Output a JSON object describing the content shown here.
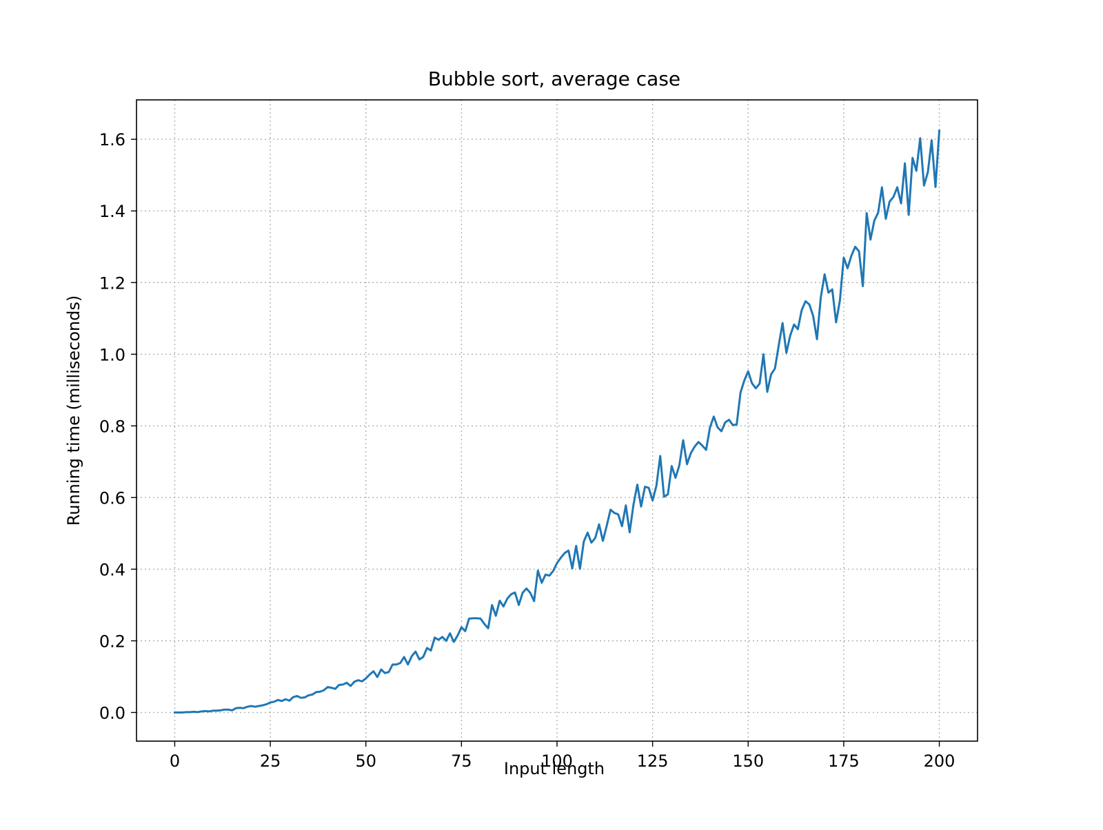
{
  "chart_data": {
    "type": "line",
    "title": "Bubble sort, average case",
    "xlabel": "Input length",
    "ylabel": "Running time (milliseconds)",
    "xlim": [
      -10,
      210
    ],
    "ylim": [
      -0.08,
      1.71
    ],
    "xticks": [
      0,
      25,
      50,
      75,
      100,
      125,
      150,
      175,
      200
    ],
    "xtick_labels": [
      "0",
      "25",
      "50",
      "75",
      "100",
      "125",
      "150",
      "175",
      "200"
    ],
    "yticks": [
      0.0,
      0.2,
      0.4,
      0.6,
      0.8,
      1.0,
      1.2,
      1.4,
      1.6
    ],
    "ytick_labels": [
      "0.0",
      "0.2",
      "0.4",
      "0.6",
      "0.8",
      "1.0",
      "1.2",
      "1.4",
      "1.6"
    ],
    "grid": true,
    "legend": "none",
    "series": [
      {
        "color": "#1f77b4",
        "x": [
          0,
          1,
          2,
          3,
          4,
          5,
          6,
          7,
          8,
          9,
          10,
          11,
          12,
          13,
          14,
          15,
          16,
          17,
          18,
          19,
          20,
          21,
          22,
          23,
          24,
          25,
          26,
          27,
          28,
          29,
          30,
          31,
          32,
          33,
          34,
          35,
          36,
          37,
          38,
          39,
          40,
          41,
          42,
          43,
          44,
          45,
          46,
          47,
          48,
          49,
          50,
          51,
          52,
          53,
          54,
          55,
          56,
          57,
          58,
          59,
          60,
          61,
          62,
          63,
          64,
          65,
          66,
          67,
          68,
          69,
          70,
          71,
          72,
          73,
          74,
          75,
          76,
          77,
          78,
          79,
          80,
          81,
          82,
          83,
          84,
          85,
          86,
          87,
          88,
          89,
          90,
          91,
          92,
          93,
          94,
          95,
          96,
          97,
          98,
          99,
          100,
          101,
          102,
          103,
          104,
          105,
          106,
          107,
          108,
          109,
          110,
          111,
          112,
          113,
          114,
          115,
          116,
          117,
          118,
          119,
          120,
          121,
          122,
          123,
          124,
          125,
          126,
          127,
          128,
          129,
          130,
          131,
          132,
          133,
          134,
          135,
          136,
          137,
          138,
          139,
          140,
          141,
          142,
          143,
          144,
          145,
          146,
          147,
          148,
          149,
          150,
          151,
          152,
          153,
          154,
          155,
          156,
          157,
          158,
          159,
          160,
          161,
          162,
          163,
          164,
          165,
          166,
          167,
          168,
          169,
          170,
          171,
          172,
          173,
          174,
          175,
          176,
          177,
          178,
          179,
          180,
          181,
          182,
          183,
          184,
          185,
          186,
          187,
          188,
          189,
          190,
          191,
          192,
          193,
          194,
          195,
          196,
          197,
          198,
          199,
          200
        ],
        "y": [
          0.0,
          0.0,
          0.0,
          0.001,
          0.001,
          0.002,
          0.001,
          0.003,
          0.004,
          0.003,
          0.005,
          0.005,
          0.006,
          0.008,
          0.008,
          0.006,
          0.012,
          0.013,
          0.012,
          0.016,
          0.018,
          0.016,
          0.018,
          0.02,
          0.023,
          0.028,
          0.03,
          0.035,
          0.032,
          0.037,
          0.033,
          0.043,
          0.046,
          0.041,
          0.042,
          0.048,
          0.05,
          0.057,
          0.058,
          0.062,
          0.071,
          0.069,
          0.066,
          0.077,
          0.078,
          0.083,
          0.074,
          0.086,
          0.09,
          0.087,
          0.095,
          0.106,
          0.115,
          0.099,
          0.12,
          0.11,
          0.113,
          0.134,
          0.134,
          0.138,
          0.155,
          0.134,
          0.157,
          0.17,
          0.148,
          0.155,
          0.18,
          0.173,
          0.209,
          0.203,
          0.211,
          0.2,
          0.221,
          0.197,
          0.215,
          0.238,
          0.227,
          0.262,
          0.263,
          0.263,
          0.262,
          0.247,
          0.235,
          0.3,
          0.27,
          0.312,
          0.296,
          0.318,
          0.33,
          0.335,
          0.3,
          0.334,
          0.346,
          0.334,
          0.311,
          0.396,
          0.362,
          0.385,
          0.382,
          0.395,
          0.417,
          0.432,
          0.445,
          0.452,
          0.402,
          0.465,
          0.401,
          0.477,
          0.502,
          0.474,
          0.487,
          0.525,
          0.479,
          0.521,
          0.566,
          0.557,
          0.553,
          0.52,
          0.578,
          0.503,
          0.58,
          0.636,
          0.575,
          0.63,
          0.627,
          0.592,
          0.633,
          0.716,
          0.602,
          0.609,
          0.688,
          0.655,
          0.69,
          0.76,
          0.693,
          0.724,
          0.742,
          0.755,
          0.745,
          0.733,
          0.795,
          0.826,
          0.796,
          0.785,
          0.81,
          0.817,
          0.802,
          0.804,
          0.893,
          0.927,
          0.952,
          0.919,
          0.905,
          0.918,
          1.0,
          0.895,
          0.944,
          0.96,
          1.025,
          1.087,
          1.004,
          1.052,
          1.083,
          1.07,
          1.123,
          1.148,
          1.139,
          1.107,
          1.042,
          1.159,
          1.223,
          1.172,
          1.181,
          1.089,
          1.15,
          1.27,
          1.24,
          1.275,
          1.3,
          1.287,
          1.19,
          1.394,
          1.32,
          1.373,
          1.395,
          1.466,
          1.378,
          1.426,
          1.439,
          1.466,
          1.421,
          1.533,
          1.389,
          1.548,
          1.512,
          1.603,
          1.471,
          1.508,
          1.597,
          1.467,
          1.624
        ]
      }
    ]
  }
}
